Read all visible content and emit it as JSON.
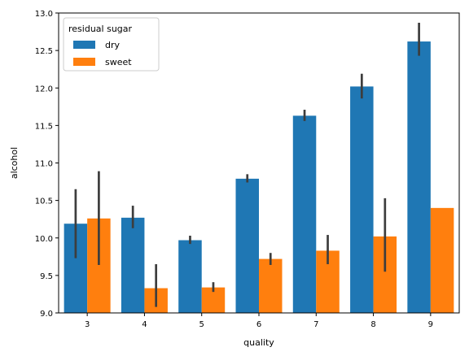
{
  "chart_data": {
    "type": "bar",
    "xlabel": "quality",
    "ylabel": "alcohol",
    "ylim": [
      9.0,
      13.0
    ],
    "yticks": [
      9.0,
      9.5,
      10.0,
      10.5,
      11.0,
      11.5,
      12.0,
      12.5,
      13.0
    ],
    "categories": [
      "3",
      "4",
      "5",
      "6",
      "7",
      "8",
      "9"
    ],
    "legend": {
      "title": "residual sugar",
      "placement": "top-left"
    },
    "series": [
      {
        "name": "dry",
        "color": "#1f77b4",
        "values": [
          10.19,
          10.27,
          9.97,
          10.79,
          11.63,
          12.02,
          12.62
        ],
        "ci_low": [
          9.73,
          10.13,
          9.92,
          10.74,
          11.56,
          11.86,
          12.43
        ],
        "ci_high": [
          10.65,
          10.43,
          10.03,
          10.85,
          11.71,
          12.19,
          12.87
        ]
      },
      {
        "name": "sweet",
        "color": "#ff7f0e",
        "values": [
          10.26,
          9.33,
          9.34,
          9.72,
          9.83,
          10.02,
          10.4
        ],
        "ci_low": [
          9.64,
          9.08,
          9.28,
          9.64,
          9.65,
          9.55,
          null
        ],
        "ci_high": [
          10.89,
          9.65,
          9.41,
          9.8,
          10.04,
          10.53,
          null
        ]
      }
    ],
    "error_bar_color": "#3d3d3d",
    "grid": false
  }
}
